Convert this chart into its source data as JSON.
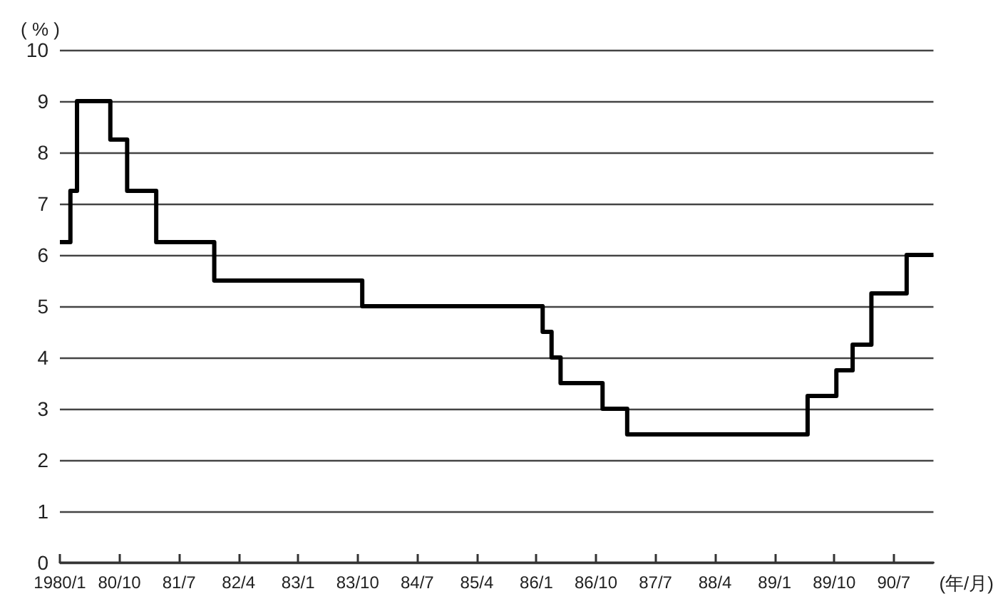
{
  "chart_data": {
    "type": "step",
    "ylabel": "( % )",
    "xlabel": "(年/月)",
    "x": [
      "1980-01",
      "1980-02-19",
      "1980-03-19",
      "1980-08-20",
      "1980-11-06",
      "1981-03-18",
      "1981-12-11",
      "1983-10-22",
      "1986-01-30",
      "1986-03-10",
      "1986-04-21",
      "1986-11-01",
      "1987-02-23",
      "1989-05-31",
      "1989-10-11",
      "1989-12-25",
      "1990-03-20",
      "1990-08-30",
      "1991-01"
    ],
    "values": [
      6.25,
      7.25,
      9,
      8.25,
      7.25,
      6.25,
      5.5,
      5,
      4.5,
      4,
      3.5,
      3,
      2.5,
      3.25,
      3.75,
      4.25,
      5.25,
      6,
      6
    ],
    "color": "#000000",
    "line_style": "solid",
    "marker": "none",
    "xlim": [
      "1980-01",
      "1991-01"
    ],
    "xticks": [
      {
        "value": "1980-01",
        "label": "1980/1"
      },
      {
        "value": "1980-10",
        "label": "80/10"
      },
      {
        "value": "1981-07",
        "label": "81/7"
      },
      {
        "value": "1982-04",
        "label": "82/4"
      },
      {
        "value": "1983-01",
        "label": "83/1"
      },
      {
        "value": "1983-10",
        "label": "83/10"
      },
      {
        "value": "1984-07",
        "label": "84/7"
      },
      {
        "value": "1985-04",
        "label": "85/4"
      },
      {
        "value": "1986-01",
        "label": "86/1"
      },
      {
        "value": "1986-10",
        "label": "86/10"
      },
      {
        "value": "1987-07",
        "label": "87/7"
      },
      {
        "value": "1988-04",
        "label": "88/4"
      },
      {
        "value": "1989-01",
        "label": "89/1"
      },
      {
        "value": "1989-10",
        "label": "89/10"
      },
      {
        "value": "1990-07",
        "label": "90/7"
      }
    ],
    "ylim": [
      0,
      10
    ],
    "yticks": [
      0,
      1,
      2,
      3,
      4,
      5,
      6,
      7,
      8,
      9,
      10
    ],
    "grid": "y"
  }
}
